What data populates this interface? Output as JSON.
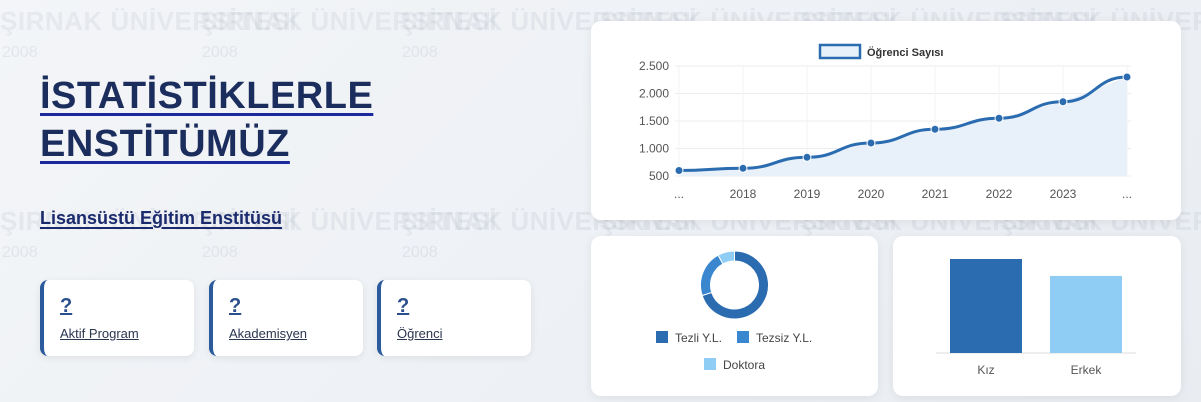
{
  "watermark": {
    "text": "ŞIRNAK ÜNİVERSİTESİ",
    "year": "2008"
  },
  "hero": {
    "title_line1": "İSTATİSTİKLERLE",
    "title_line2": "ENSTİTÜMÜZ",
    "subtitle": "Lisansüstü Eğitim Enstitüsü"
  },
  "stats": [
    {
      "value": "?",
      "label": "Aktif Program"
    },
    {
      "value": "?",
      "label": "Akademisyen"
    },
    {
      "value": "?",
      "label": "Öğrenci"
    }
  ],
  "colors": {
    "dark_blue": "#2b6cb0",
    "mid_blue": "#3a87d0",
    "light_blue": "#90cdf4",
    "line_fill": "#e8f0fa"
  },
  "chart_data": [
    {
      "type": "line",
      "legend": "Öğrenci Sayısı",
      "x": [
        "...",
        "2018",
        "2019",
        "2020",
        "2021",
        "2022",
        "2023",
        "..."
      ],
      "values": [
        600,
        640,
        840,
        1100,
        1350,
        1550,
        1850,
        2300
      ],
      "y_ticks": [
        "2.500",
        "2.000",
        "1.500",
        "1.000",
        "500"
      ],
      "ylim": [
        500,
        2500
      ],
      "fill": true
    },
    {
      "type": "pie",
      "variant": "doughnut",
      "categories": [
        "Tezli Y.L.",
        "Tezsiz Y.L.",
        "Doktora"
      ],
      "values": [
        70,
        22,
        8
      ]
    },
    {
      "type": "bar",
      "categories": [
        "Kız",
        "Erkek"
      ],
      "values": [
        100,
        82
      ],
      "ylim": [
        0,
        100
      ]
    }
  ]
}
